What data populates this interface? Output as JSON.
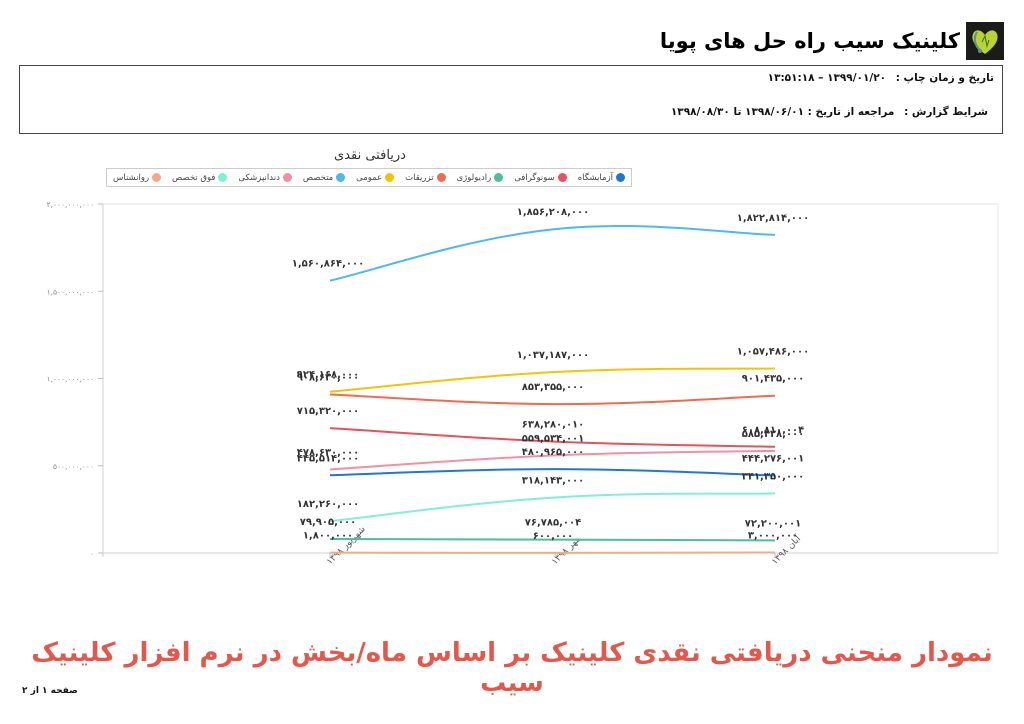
{
  "header": {
    "brand_name": "کلینیک سیب راه حل های پویا",
    "logo_icon": "heart-stethoscope-logo"
  },
  "info": {
    "print_label": "تاریخ و زمان چاپ :",
    "print_value": "۱۳۹۹/۰۱/۲۰ – ۱۳:۵۱:۱۸",
    "report_label": "شرایط گزارش :",
    "report_value": "مراجعه از تاریخ : ۱۳۹۸/۰۶/۰۱ تا ۱۳۹۸/۰۸/۳۰"
  },
  "footer": {
    "caption": "نمودار منحنی دریافتی نقدی کلینیک بر اساس ماه/بخش در نرم افزار کلینیک سیب",
    "page": "صفحه ۱ از ۲"
  },
  "chart_data": {
    "type": "line",
    "title": "دریافتی نقدی",
    "xlabel": "",
    "ylabel": "",
    "ylim": [
      0,
      2000000000
    ],
    "grid": false,
    "legend_position": "top",
    "y_ticks": [
      0,
      500000000,
      1000000000,
      1500000000,
      2000000000
    ],
    "y_tick_labels": [
      "۰",
      "۵۰۰,۰۰۰,۰۰۰",
      "۱,۰۰۰,۰۰۰,۰۰۰",
      "۱,۵۰۰,۰۰۰,۰۰۰",
      "۲,۰۰۰,۰۰۰,۰۰۰"
    ],
    "categories": [
      "شهریور ۱۳۹۸",
      "مهر ۱۳۹۸",
      "آبان ۱۳۹۸"
    ],
    "series": [
      {
        "name": "روانشناس",
        "color": "#f5a98a",
        "values": [
          1800000,
          600000,
          3000000
        ],
        "labels": [
          "۱,۸۰۰,۰۰۰",
          "۶۰۰,۰۰۰",
          "۳,۰۰۰,۰۰۰"
        ]
      },
      {
        "name": "فوق تخصص",
        "color": "#7ff0d8",
        "values": [
          182260000,
          318143000,
          341350000
        ],
        "labels": [
          "۱۸۲,۲۶۰,۰۰۰",
          "۳۱۸,۱۴۳,۰۰۰",
          "۳۴۱,۳۵۰,۰۰۰"
        ]
      },
      {
        "name": "دندانپزشکی",
        "color": "#f48fa0",
        "values": [
          478630000,
          559534001,
          585428000
        ],
        "labels": [
          "۴۷۸,۶۳۰,۰۰۰",
          "۵۵۹,۵۳۴,۰۰۱",
          "۵۸۵,۴۲۸,۰۰۰"
        ]
      },
      {
        "name": "متخصص",
        "color": "#4fb8ee",
        "values": [
          1560864000,
          1856208000,
          1822814000
        ],
        "labels": [
          "۱,۵۶۰,۸۶۴,۰۰۰",
          "۱,۸۵۶,۲۰۸,۰۰۰",
          "۱,۸۲۲,۸۱۴,۰۰۰"
        ]
      },
      {
        "name": "عمومی",
        "color": "#f5c400",
        "values": [
          924168000,
          1037187000,
          1057486000
        ],
        "labels": [
          "۹۲۴,۱۶۸,۰۰۰",
          "۱,۰۳۷,۱۸۷,۰۰۰",
          "۱,۰۵۷,۴۸۶,۰۰۰"
        ]
      },
      {
        "name": "تزریقات",
        "color": "#f26a4f",
        "values": [
          908630000,
          853355000,
          901435000
        ],
        "labels": [
          "۹۰۸,۶۳۰,۰۰۰",
          "۸۵۳,۳۵۵,۰۰۰",
          "۹۰۱,۴۳۵,۰۰۰"
        ]
      },
      {
        "name": "رادیولوژی",
        "color": "#4bbf95",
        "values": [
          79905000,
          76785004,
          72200001
        ],
        "labels": [
          "۷۹,۹۰۵,۰۰۰",
          "۷۶,۷۸۵,۰۰۴",
          "۷۲,۲۰۰,۰۰۱"
        ]
      },
      {
        "name": "سونوگرافی",
        "color": "#e8505b",
        "values": [
          715320000,
          638280010,
          608810004
        ],
        "labels": [
          "۷۱۵,۳۲۰,۰۰۰",
          "۶۳۸,۲۸۰,۰۱۰",
          "۶۰۸,۸۱۰,۰۰۴"
        ]
      },
      {
        "name": "آزمایشگاه",
        "color": "#1f78d1",
        "values": [
          445514000,
          480965000,
          444276001
        ],
        "labels": [
          "۴۴۵,۵۱۴,۰۰۰",
          "۴۸۰,۹۶۵,۰۰۰",
          "۴۴۴,۲۷۶,۰۰۱"
        ]
      }
    ]
  }
}
